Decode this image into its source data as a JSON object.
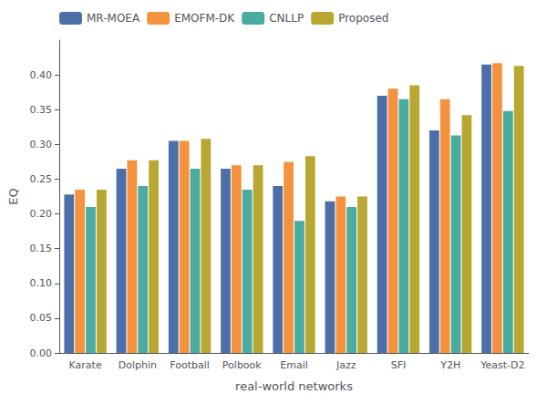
{
  "chart_data": {
    "type": "bar",
    "categories": [
      "Karate",
      "Dolphin",
      "Football",
      "Polbook",
      "Email",
      "Jazz",
      "SFI",
      "Y2H",
      "Yeast-D2"
    ],
    "series": [
      {
        "name": "MR-MOEA",
        "color": "#4d6fa8",
        "values": [
          0.228,
          0.265,
          0.305,
          0.265,
          0.24,
          0.218,
          0.37,
          0.32,
          0.415
        ]
      },
      {
        "name": "EMOFM-DK",
        "color": "#f5923e",
        "values": [
          0.235,
          0.277,
          0.305,
          0.27,
          0.275,
          0.225,
          0.38,
          0.365,
          0.417
        ]
      },
      {
        "name": "CNLLP",
        "color": "#4aaba0",
        "values": [
          0.21,
          0.24,
          0.265,
          0.235,
          0.19,
          0.21,
          0.365,
          0.313,
          0.348
        ]
      },
      {
        "name": "Proposed",
        "color": "#b8a832",
        "values": [
          0.235,
          0.277,
          0.308,
          0.27,
          0.283,
          0.225,
          0.385,
          0.342,
          0.413
        ]
      }
    ],
    "xlabel": "real-world networks",
    "ylabel": "EQ",
    "ylim": [
      0,
      0.45
    ],
    "yticks": [
      {
        "value": 0,
        "label": "0.00"
      },
      0.05,
      {
        "value": 0.1,
        "label": "0.10"
      },
      0.15,
      {
        "value": 0.2,
        "label": "0.20"
      },
      0.25,
      {
        "value": 0.3,
        "label": "0.30"
      },
      0.35,
      {
        "value": 0.4,
        "label": "0.40"
      }
    ],
    "legend": "upper left",
    "grid": false
  }
}
